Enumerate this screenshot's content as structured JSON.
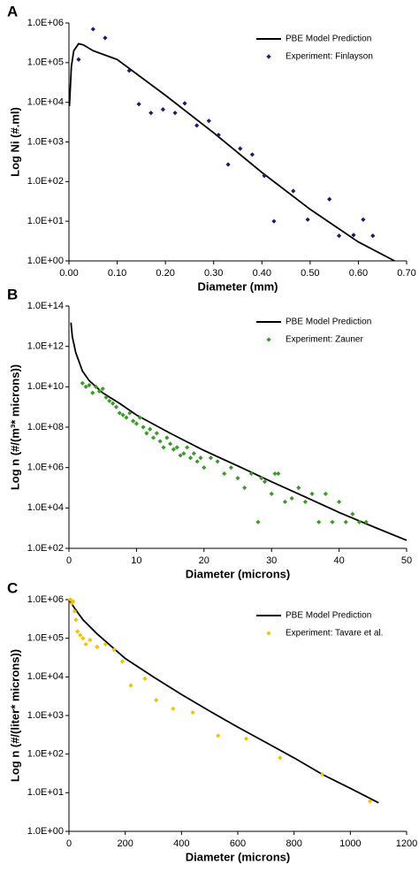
{
  "chart_data": [
    {
      "type": "scatter",
      "title": "A",
      "x_label": "Diameter (mm)",
      "y_label": "Log Ni (#.ml)",
      "log_y": true,
      "legend": "upper right",
      "xlim": [
        0,
        0.7
      ],
      "ylim": [
        1,
        1000000
      ],
      "xticks": [
        {
          "value": 0,
          "label": "0.00"
        },
        {
          "value": 0.1,
          "label": "0.10"
        },
        {
          "value": 0.2,
          "label": "0.20"
        },
        {
          "value": 0.3,
          "label": "0.30"
        },
        {
          "value": 0.4,
          "label": "0.40"
        },
        {
          "value": 0.5,
          "label": "0.50"
        },
        {
          "value": 0.6,
          "label": "0.60"
        },
        {
          "value": 0.7,
          "label": "0.70"
        }
      ],
      "yticks": [
        {
          "value": 1,
          "label": "1.0E+00"
        },
        {
          "value": 10,
          "label": "1.0E+01"
        },
        {
          "value": 100,
          "label": "1.0E+02"
        },
        {
          "value": 1000,
          "label": "1.0E+03"
        },
        {
          "value": 10000,
          "label": "1.0E+04"
        },
        {
          "value": 100000,
          "label": "1.0E+05"
        },
        {
          "value": 1000000,
          "label": "1.0E+06"
        }
      ],
      "series": [
        {
          "name": "PBE Model Prediction",
          "kind": "line",
          "color": "#000000",
          "x": [
            0.001,
            0.005,
            0.01,
            0.02,
            0.03,
            0.05,
            0.1,
            0.2,
            0.3,
            0.4,
            0.5,
            0.6,
            0.675
          ],
          "values": [
            8000,
            80000,
            200000,
            300000,
            280000,
            200000,
            120000,
            15000,
            1700,
            170,
            20,
            3,
            1
          ]
        },
        {
          "name": "Experiment: Finlayson",
          "kind": "points",
          "color": "#1a1a70",
          "x": [
            0.02,
            0.05,
            0.075,
            0.125,
            0.145,
            0.17,
            0.195,
            0.22,
            0.24,
            0.265,
            0.29,
            0.31,
            0.33,
            0.355,
            0.38,
            0.405,
            0.425,
            0.465,
            0.495,
            0.54,
            0.56,
            0.59,
            0.61,
            0.63
          ],
          "values": [
            120000,
            700000,
            420000,
            63000,
            9000,
            5400,
            6600,
            5400,
            9400,
            2600,
            3400,
            1500,
            270,
            680,
            480,
            140,
            10,
            58,
            11,
            36,
            4.3,
            4.5,
            11,
            4.3
          ]
        }
      ]
    },
    {
      "type": "scatter",
      "title": "B",
      "x_label": "Diameter (microns)",
      "y_label": "Log n (#/(m³* microns))",
      "log_y": true,
      "legend": "upper right",
      "xlim": [
        0,
        50
      ],
      "ylim": [
        100,
        100000000000000
      ],
      "xticks": [
        0,
        10,
        20,
        30,
        40,
        50
      ],
      "yticks": [
        {
          "value": 100,
          "label": "1.0E+02"
        },
        {
          "value": 10000,
          "label": "1.0E+04"
        },
        {
          "value": 1000000,
          "label": "1.0E+06"
        },
        {
          "value": 100000000,
          "label": "1.0E+08"
        },
        {
          "value": 10000000000,
          "label": "1.0E+10"
        },
        {
          "value": 1000000000000,
          "label": "1.0E+12"
        },
        {
          "value": 100000000000000,
          "label": "1.0E+14"
        }
      ],
      "series": [
        {
          "name": "PBE Model Prediction",
          "kind": "line",
          "color": "#000000",
          "x": [
            0.3,
            0.5,
            1,
            2,
            3,
            5,
            7.5,
            10,
            15,
            20,
            25,
            30,
            35,
            40,
            45,
            50
          ],
          "values": [
            15000000000000,
            3000000000000,
            500000000000,
            60000000000,
            20000000000,
            5000000000,
            1500000000,
            400000000,
            50000000,
            7000000,
            1200000,
            200000,
            35000,
            6000,
            1200,
            250
          ]
        },
        {
          "name": "Experiment: Zauner",
          "kind": "points",
          "color": "#3c9a28",
          "x": [
            2,
            2.5,
            3,
            3.5,
            4,
            4.5,
            5,
            5.5,
            6,
            6.5,
            7,
            7.5,
            8,
            8.5,
            9,
            9.5,
            10,
            10.5,
            11,
            11.5,
            12,
            12.5,
            13,
            13.5,
            14,
            14.5,
            15,
            15.5,
            16,
            16.5,
            17,
            17.5,
            18,
            18.5,
            19,
            19.5,
            20,
            21,
            22,
            23,
            24,
            25,
            26,
            27,
            28,
            28.5,
            29,
            30,
            30.5,
            31,
            32,
            33,
            34,
            35,
            36,
            37,
            38,
            39,
            40,
            41,
            42,
            43,
            44
          ],
          "values": [
            15000000000,
            10000000000,
            12000000000,
            5000000000,
            10000000000,
            6000000000,
            8000000000,
            3000000000,
            2000000000,
            1500000000,
            1000000000,
            500000000,
            400000000,
            300000000,
            500000000,
            200000000,
            150000000,
            300000000,
            100000000,
            50000000,
            80000000,
            30000000,
            50000000,
            20000000,
            10000000,
            30000000,
            15000000,
            8000000,
            10000000,
            4000000,
            5000000,
            10000000,
            3000000,
            5000000,
            2000000,
            3000000,
            1000000,
            3000000,
            2000000,
            500000,
            1000000,
            300000,
            100000,
            500000,
            2000,
            300000,
            200000,
            50000,
            500000,
            500000,
            20000,
            30000,
            100000,
            20000,
            50000,
            2000,
            50000,
            2000,
            20000,
            2000,
            5000,
            2000,
            2000
          ]
        }
      ]
    },
    {
      "type": "scatter",
      "title": "C",
      "x_label": "Diameter (microns)",
      "y_label": "Log n (#/(liter* microns))",
      "log_y": true,
      "legend": "upper right",
      "xlim": [
        0,
        1200
      ],
      "ylim": [
        1,
        1000000
      ],
      "xticks": [
        0,
        200,
        400,
        600,
        800,
        1000,
        1200
      ],
      "yticks": [
        {
          "value": 1,
          "label": "1.0E+00"
        },
        {
          "value": 10,
          "label": "1.0E+01"
        },
        {
          "value": 100,
          "label": "1.0E+02"
        },
        {
          "value": 1000,
          "label": "1.0E+03"
        },
        {
          "value": 10000,
          "label": "1.0E+04"
        },
        {
          "value": 100000,
          "label": "1.0E+05"
        },
        {
          "value": 1000000,
          "label": "1.0E+06"
        }
      ],
      "series": [
        {
          "name": "PBE Model Prediction",
          "kind": "line",
          "color": "#000000",
          "x": [
            0,
            20,
            50,
            100,
            200,
            300,
            400,
            500,
            600,
            700,
            800,
            900,
            1000,
            1100
          ],
          "values": [
            1000000,
            600000,
            300000,
            130000,
            30000,
            10000,
            3500,
            1300,
            500,
            200,
            80,
            30,
            13,
            5.5
          ]
        },
        {
          "name": "Experiment: Tavare et al.",
          "kind": "points",
          "color": "#f2c200",
          "x": [
            5,
            10,
            15,
            20,
            25,
            30,
            40,
            50,
            60,
            75,
            100,
            130,
            160,
            190,
            220,
            270,
            310,
            370,
            440,
            530,
            630,
            750,
            900,
            1070
          ],
          "values": [
            1000000,
            800000,
            900000,
            500000,
            300000,
            150000,
            120000,
            100000,
            70000,
            90000,
            60000,
            70000,
            50000,
            25000,
            6000,
            9000,
            2500,
            1500,
            1200,
            300,
            250,
            80,
            30,
            6
          ]
        }
      ]
    }
  ]
}
